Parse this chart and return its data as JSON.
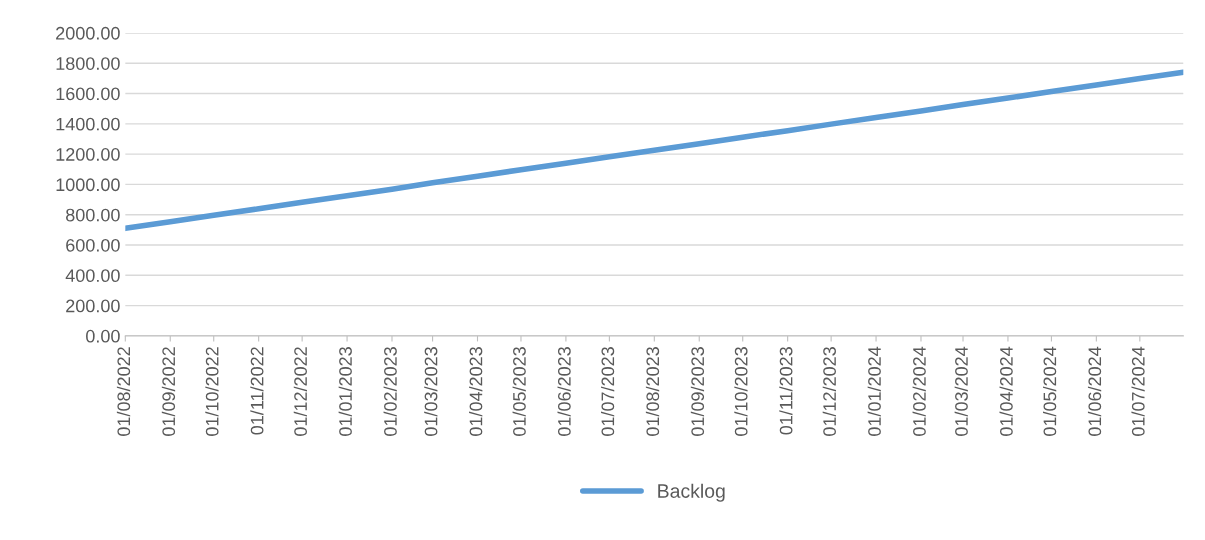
{
  "chart_data": {
    "type": "line",
    "x": [
      "2022-08-01",
      "2022-09-01",
      "2022-10-01",
      "2022-11-01",
      "2022-12-01",
      "2023-01-01",
      "2023-02-01",
      "2023-03-01",
      "2023-04-01",
      "2023-05-01",
      "2023-06-01",
      "2023-07-01",
      "2023-08-01",
      "2023-09-01",
      "2023-10-01",
      "2023-11-01",
      "2023-12-01",
      "2024-01-01",
      "2024-02-01",
      "2024-03-01",
      "2024-04-01",
      "2024-05-01",
      "2024-06-01",
      "2024-07-01",
      "2024-07-31"
    ],
    "series": [
      {
        "name": "Backlog",
        "color": "#5b9bd5",
        "values": [
          710,
          753,
          796,
          839,
          882,
          925,
          968,
          1011,
          1054,
          1097,
          1140,
          1183,
          1226,
          1269,
          1312,
          1355,
          1398,
          1441,
          1484,
          1527,
          1570,
          1613,
          1656,
          1699,
          1740
        ]
      }
    ],
    "xlim": [
      "2022-08-01",
      "2024-07-31"
    ],
    "xticks": [
      {
        "value": "2022-08-01",
        "label": "01/08/2022"
      },
      {
        "value": "2022-09-01",
        "label": "01/09/2022"
      },
      {
        "value": "2022-10-01",
        "label": "01/10/2022"
      },
      {
        "value": "2022-11-01",
        "label": "01/11/2022"
      },
      {
        "value": "2022-12-01",
        "label": "01/12/2022"
      },
      {
        "value": "2023-01-01",
        "label": "01/01/2023"
      },
      {
        "value": "2023-02-01",
        "label": "01/02/2023"
      },
      {
        "value": "2023-03-01",
        "label": "01/03/2023"
      },
      {
        "value": "2023-04-01",
        "label": "01/04/2023"
      },
      {
        "value": "2023-05-01",
        "label": "01/05/2023"
      },
      {
        "value": "2023-06-01",
        "label": "01/06/2023"
      },
      {
        "value": "2023-07-01",
        "label": "01/07/2023"
      },
      {
        "value": "2023-08-01",
        "label": "01/08/2023"
      },
      {
        "value": "2023-09-01",
        "label": "01/09/2023"
      },
      {
        "value": "2023-10-01",
        "label": "01/10/2023"
      },
      {
        "value": "2023-11-01",
        "label": "01/11/2023"
      },
      {
        "value": "2023-12-01",
        "label": "01/12/2023"
      },
      {
        "value": "2024-01-01",
        "label": "01/01/2024"
      },
      {
        "value": "2024-02-01",
        "label": "01/02/2024"
      },
      {
        "value": "2024-03-01",
        "label": "01/03/2024"
      },
      {
        "value": "2024-04-01",
        "label": "01/04/2024"
      },
      {
        "value": "2024-05-01",
        "label": "01/05/2024"
      },
      {
        "value": "2024-06-01",
        "label": "01/06/2024"
      },
      {
        "value": "2024-07-01",
        "label": "01/07/2024"
      }
    ],
    "ylim": [
      0,
      2000
    ],
    "yticks": [
      {
        "value": 0,
        "label": "0.00"
      },
      {
        "value": 200,
        "label": "200.00"
      },
      {
        "value": 400,
        "label": "400.00"
      },
      {
        "value": 600,
        "label": "600.00"
      },
      {
        "value": 800,
        "label": "800.00"
      },
      {
        "value": 1000,
        "label": "1000.00"
      },
      {
        "value": 1200,
        "label": "1200.00"
      },
      {
        "value": 1400,
        "label": "1400.00"
      },
      {
        "value": 1600,
        "label": "1600.00"
      },
      {
        "value": 1800,
        "label": "1800.00"
      },
      {
        "value": 2000,
        "label": "2000.00"
      }
    ],
    "grid": "y",
    "legend": "bottom",
    "line_style": "solid"
  }
}
